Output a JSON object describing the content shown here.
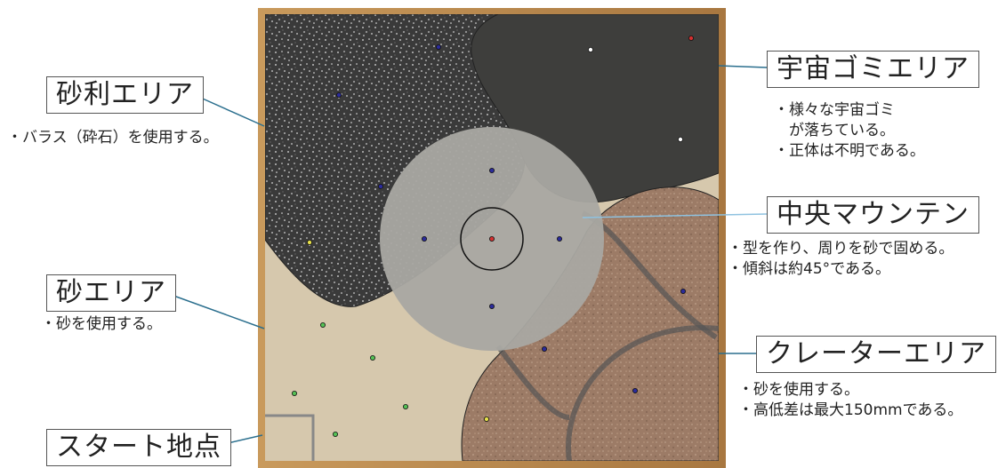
{
  "areas": {
    "gravel": {
      "title": "砂利エリア",
      "notes": [
        "・バラス（砕石）を使用する。"
      ]
    },
    "space_debris": {
      "title": "宇宙ゴミエリア",
      "notes": [
        "・様々な宇宙ゴミ",
        "　が落ちている。",
        "・正体は不明である。"
      ]
    },
    "center_mountain": {
      "title": "中央マウンテン",
      "notes": [
        "・型を作り、周りを砂で固める。",
        "・傾斜は約45°である。"
      ]
    },
    "sand": {
      "title": "砂エリア",
      "notes": [
        "・砂を使用する。"
      ]
    },
    "crater": {
      "title": "クレーターエリア",
      "notes": [
        "・砂を使用する。",
        "・高低差は最大150mmである。"
      ]
    },
    "start": {
      "title": "スタート地点"
    }
  },
  "colors": {
    "frame": "#b98a4e",
    "gravel": "#3a3a3a",
    "debris": "#3e3e3c",
    "sand": "#d6c8ad",
    "crater": "#9c7b66",
    "mountain": "#a9a8a2",
    "leader_dark": "#2b6f8e",
    "leader_light": "#8fc2e0"
  },
  "markers": [
    {
      "zone": "gravel",
      "color": "#2b2b9a"
    },
    {
      "zone": "gravel",
      "color": "#2b2b9a"
    },
    {
      "zone": "gravel",
      "color": "#2b2b9a"
    },
    {
      "zone": "gravel",
      "color": "#e6e04a"
    },
    {
      "zone": "debris",
      "color": "#ffffff"
    },
    {
      "zone": "debris",
      "color": "#d43030"
    },
    {
      "zone": "debris",
      "color": "#ffffff"
    },
    {
      "zone": "mountain",
      "color": "#2b2b9a"
    },
    {
      "zone": "mountain",
      "color": "#2b2b9a"
    },
    {
      "zone": "mountain",
      "color": "#2b2b9a"
    },
    {
      "zone": "mountain",
      "color": "#2b2b9a"
    },
    {
      "zone": "mountain",
      "color": "#d43030"
    },
    {
      "zone": "sand",
      "color": "#55c055"
    },
    {
      "zone": "sand",
      "color": "#55c055"
    },
    {
      "zone": "sand",
      "color": "#55c055"
    },
    {
      "zone": "sand",
      "color": "#55c055"
    },
    {
      "zone": "sand",
      "color": "#55c055"
    },
    {
      "zone": "crater",
      "color": "#2b2b9a"
    },
    {
      "zone": "crater",
      "color": "#2b2b9a"
    },
    {
      "zone": "crater",
      "color": "#2b2b9a"
    },
    {
      "zone": "crater",
      "color": "#e6e04a"
    }
  ]
}
